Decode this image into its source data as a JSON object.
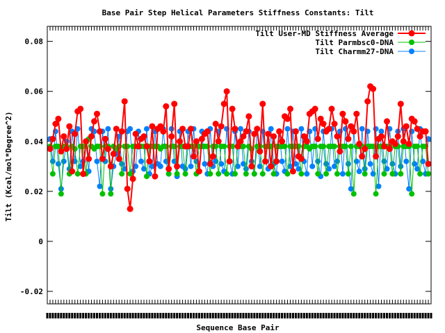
{
  "chart_data": {
    "type": "line",
    "title": "Base Pair Step Helical Parameters Stiffness Constants: Tilt",
    "xlabel": "Sequence Base Pair",
    "ylabel": "Tilt (Kcal/mol*Degree^2)",
    "ylim": [
      -0.025,
      0.086
    ],
    "xlim": [
      0,
      139
    ],
    "yticks": [
      -0.02,
      0,
      0.02,
      0.04,
      0.06,
      0.08
    ],
    "ytick_labels": [
      "-0.02",
      "0",
      "0.02",
      "0.04",
      "0.06",
      "0.08"
    ],
    "grid": false,
    "legend_position": "top-right",
    "colors": {
      "user_md": "#ff0000",
      "parmbsc0": "#00c000",
      "charmm27": "#0080ff"
    },
    "series": [
      {
        "name": "Tilt User-MD Stiffness Average",
        "color": "#ff0000",
        "x": [
          1,
          2,
          3,
          4,
          5,
          6,
          7,
          8,
          9,
          10,
          11,
          12,
          13,
          14,
          15,
          16,
          17,
          18,
          19,
          20,
          21,
          22,
          23,
          24,
          25,
          26,
          27,
          28,
          29,
          30,
          31,
          32,
          33,
          34,
          35,
          36,
          37,
          38,
          39,
          40,
          41,
          42,
          43,
          44,
          45,
          46,
          47,
          48,
          49,
          50,
          51,
          52,
          53,
          54,
          55,
          56,
          57,
          58,
          59,
          60,
          61,
          62,
          63,
          64,
          65,
          66,
          67,
          68,
          69,
          70,
          71,
          72,
          73,
          74,
          75,
          76,
          77,
          78,
          79,
          80,
          81,
          82,
          83,
          84,
          85,
          86,
          87,
          88,
          89,
          90,
          91,
          92,
          93,
          94,
          95,
          96,
          97,
          98,
          99,
          100,
          101,
          102,
          103,
          104,
          105,
          106,
          107,
          108,
          109,
          110,
          111,
          112,
          113,
          114,
          115,
          116,
          117,
          118,
          119,
          120,
          121,
          122,
          123,
          124,
          125,
          126,
          127,
          128,
          129,
          130,
          131,
          132,
          133,
          134,
          135,
          136,
          137,
          138
        ],
        "values": [
          0.037,
          0.041,
          0.047,
          0.049,
          0.036,
          0.042,
          0.037,
          0.046,
          0.028,
          0.043,
          0.052,
          0.053,
          0.027,
          0.04,
          0.033,
          0.042,
          0.048,
          0.051,
          0.044,
          0.033,
          0.041,
          0.037,
          0.03,
          0.035,
          0.045,
          0.033,
          0.044,
          0.056,
          0.021,
          0.013,
          0.025,
          0.043,
          0.038,
          0.041,
          0.042,
          0.038,
          0.032,
          0.046,
          0.026,
          0.045,
          0.046,
          0.044,
          0.054,
          0.029,
          0.042,
          0.055,
          0.03,
          0.04,
          0.045,
          0.038,
          0.038,
          0.045,
          0.034,
          0.04,
          0.028,
          0.041,
          0.043,
          0.044,
          0.031,
          0.034,
          0.047,
          0.04,
          0.046,
          0.055,
          0.06,
          0.032,
          0.053,
          0.045,
          0.038,
          0.04,
          0.042,
          0.044,
          0.05,
          0.03,
          0.043,
          0.045,
          0.036,
          0.055,
          0.032,
          0.043,
          0.03,
          0.042,
          0.032,
          0.044,
          0.04,
          0.05,
          0.049,
          0.053,
          0.028,
          0.044,
          0.034,
          0.033,
          0.042,
          0.04,
          0.051,
          0.052,
          0.053,
          0.041,
          0.049,
          0.047,
          0.044,
          0.045,
          0.053,
          0.047,
          0.042,
          0.036,
          0.051,
          0.048,
          0.041,
          0.046,
          0.044,
          0.051,
          0.039,
          0.034,
          0.037,
          0.056,
          0.062,
          0.061,
          0.034,
          0.041,
          0.042,
          0.038,
          0.048,
          0.037,
          0.04,
          0.039,
          0.042,
          0.055,
          0.04,
          0.046,
          0.039,
          0.049,
          0.048,
          0.045,
          0.042,
          0.044,
          0.044,
          0.031
        ]
      },
      {
        "name": "Tilt Parmbsc0-DNA",
        "color": "#00c000",
        "x": [
          1,
          2,
          3,
          4,
          5,
          6,
          7,
          8,
          9,
          10,
          11,
          12,
          13,
          14,
          15,
          16,
          17,
          18,
          19,
          20,
          21,
          22,
          23,
          24,
          25,
          26,
          27,
          28,
          29,
          30,
          31,
          32,
          33,
          34,
          35,
          36,
          37,
          38,
          39,
          40,
          41,
          42,
          43,
          44,
          45,
          46,
          47,
          48,
          49,
          50,
          51,
          52,
          53,
          54,
          55,
          56,
          57,
          58,
          59,
          60,
          61,
          62,
          63,
          64,
          65,
          66,
          67,
          68,
          69,
          70,
          71,
          72,
          73,
          74,
          75,
          76,
          77,
          78,
          79,
          80,
          81,
          82,
          83,
          84,
          85,
          86,
          87,
          88,
          89,
          90,
          91,
          92,
          93,
          94,
          95,
          96,
          97,
          98,
          99,
          100,
          101,
          102,
          103,
          104,
          105,
          106,
          107,
          108,
          109,
          110,
          111,
          112,
          113,
          114,
          115,
          116,
          117,
          118,
          119,
          120,
          121,
          122,
          123,
          124,
          125,
          126,
          127,
          128,
          129,
          130,
          131,
          132,
          133,
          134,
          135,
          136,
          137,
          138
        ],
        "values": [
          0.038,
          0.027,
          0.038,
          0.038,
          0.019,
          0.038,
          0.038,
          0.027,
          0.038,
          0.037,
          0.027,
          0.038,
          0.038,
          0.027,
          0.041,
          0.038,
          0.037,
          0.038,
          0.038,
          0.019,
          0.038,
          0.038,
          0.019,
          0.038,
          0.037,
          0.038,
          0.027,
          0.038,
          0.038,
          0.027,
          0.038,
          0.038,
          0.038,
          0.038,
          0.038,
          0.026,
          0.038,
          0.038,
          0.038,
          0.038,
          0.037,
          0.038,
          0.038,
          0.027,
          0.038,
          0.038,
          0.027,
          0.038,
          0.038,
          0.027,
          0.038,
          0.038,
          0.038,
          0.027,
          0.038,
          0.038,
          0.038,
          0.038,
          0.027,
          0.038,
          0.038,
          0.027,
          0.038,
          0.038,
          0.027,
          0.038,
          0.038,
          0.027,
          0.038,
          0.038,
          0.038,
          0.027,
          0.038,
          0.037,
          0.027,
          0.038,
          0.038,
          0.027,
          0.038,
          0.038,
          0.038,
          0.027,
          0.038,
          0.038,
          0.038,
          0.038,
          0.027,
          0.038,
          0.038,
          0.038,
          0.038,
          0.027,
          0.038,
          0.038,
          0.037,
          0.038,
          0.038,
          0.027,
          0.038,
          0.038,
          0.027,
          0.038,
          0.038,
          0.038,
          0.027,
          0.038,
          0.038,
          0.038,
          0.027,
          0.038,
          0.019,
          0.038,
          0.038,
          0.038,
          0.027,
          0.038,
          0.038,
          0.038,
          0.019,
          0.038,
          0.038,
          0.027,
          0.038,
          0.038,
          0.027,
          0.038,
          0.038,
          0.027,
          0.038,
          0.038,
          0.038,
          0.019,
          0.038,
          0.038,
          0.027,
          0.038,
          0.038,
          0.027
        ]
      },
      {
        "name": "Tilt Charmm27-DNA",
        "color": "#0080ff",
        "x": [
          1,
          2,
          3,
          4,
          5,
          6,
          7,
          8,
          9,
          10,
          11,
          12,
          13,
          14,
          15,
          16,
          17,
          18,
          19,
          20,
          21,
          22,
          23,
          24,
          25,
          26,
          27,
          28,
          29,
          30,
          31,
          32,
          33,
          34,
          35,
          36,
          37,
          38,
          39,
          40,
          41,
          42,
          43,
          44,
          45,
          46,
          47,
          48,
          49,
          50,
          51,
          52,
          53,
          54,
          55,
          56,
          57,
          58,
          59,
          60,
          61,
          62,
          63,
          64,
          65,
          66,
          67,
          68,
          69,
          70,
          71,
          72,
          73,
          74,
          75,
          76,
          77,
          78,
          79,
          80,
          81,
          82,
          83,
          84,
          85,
          86,
          87,
          88,
          89,
          90,
          91,
          92,
          93,
          94,
          95,
          96,
          97,
          98,
          99,
          100,
          101,
          102,
          103,
          104,
          105,
          106,
          107,
          108,
          109,
          110,
          111,
          112,
          113,
          114,
          115,
          116,
          117,
          118,
          119,
          120,
          121,
          122,
          123,
          124,
          125,
          126,
          127,
          128,
          129,
          130,
          131,
          132,
          133,
          134,
          135,
          136,
          137,
          138
        ],
        "values": [
          0.041,
          0.032,
          0.044,
          0.031,
          0.021,
          0.032,
          0.04,
          0.029,
          0.044,
          0.032,
          0.045,
          0.03,
          0.032,
          0.04,
          0.028,
          0.045,
          0.044,
          0.032,
          0.022,
          0.044,
          0.032,
          0.045,
          0.021,
          0.03,
          0.035,
          0.042,
          0.031,
          0.029,
          0.044,
          0.045,
          0.028,
          0.03,
          0.044,
          0.032,
          0.029,
          0.045,
          0.027,
          0.03,
          0.044,
          0.031,
          0.03,
          0.045,
          0.032,
          0.027,
          0.045,
          0.032,
          0.026,
          0.044,
          0.03,
          0.029,
          0.044,
          0.03,
          0.045,
          0.032,
          0.028,
          0.044,
          0.031,
          0.027,
          0.045,
          0.03,
          0.032,
          0.044,
          0.031,
          0.028,
          0.045,
          0.032,
          0.027,
          0.044,
          0.03,
          0.045,
          0.031,
          0.029,
          0.044,
          0.032,
          0.027,
          0.045,
          0.03,
          0.044,
          0.032,
          0.029,
          0.045,
          0.031,
          0.027,
          0.044,
          0.032,
          0.028,
          0.045,
          0.03,
          0.044,
          0.031,
          0.029,
          0.045,
          0.032,
          0.027,
          0.044,
          0.03,
          0.045,
          0.032,
          0.026,
          0.044,
          0.031,
          0.029,
          0.045,
          0.03,
          0.032,
          0.044,
          0.027,
          0.045,
          0.031,
          0.021,
          0.044,
          0.032,
          0.028,
          0.045,
          0.029,
          0.044,
          0.031,
          0.027,
          0.045,
          0.022,
          0.044,
          0.032,
          0.029,
          0.045,
          0.031,
          0.027,
          0.044,
          0.03,
          0.045,
          0.032,
          0.021,
          0.044,
          0.031,
          0.029,
          0.045,
          0.032,
          0.027,
          0.041
        ]
      }
    ]
  }
}
